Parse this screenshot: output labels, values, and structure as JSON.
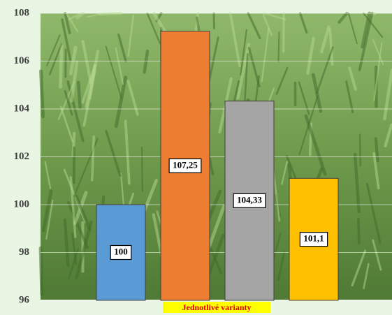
{
  "chart_data": {
    "type": "bar",
    "x_label": "Jednotlivé varianty",
    "categories": [
      null,
      null,
      null,
      null
    ],
    "series": [
      {
        "values": [
          100,
          107.25,
          104.33,
          101.1
        ],
        "value_labels": [
          "100",
          "107,25",
          "104,33",
          "101,1"
        ],
        "colors": [
          "#5b9bd5",
          "#ed7d31",
          "#a5a5a5",
          "#ffc000"
        ]
      }
    ],
    "ylim": [
      96,
      108
    ],
    "yticks": [
      96,
      98,
      100,
      102,
      104,
      106,
      108
    ],
    "grid": true
  }
}
